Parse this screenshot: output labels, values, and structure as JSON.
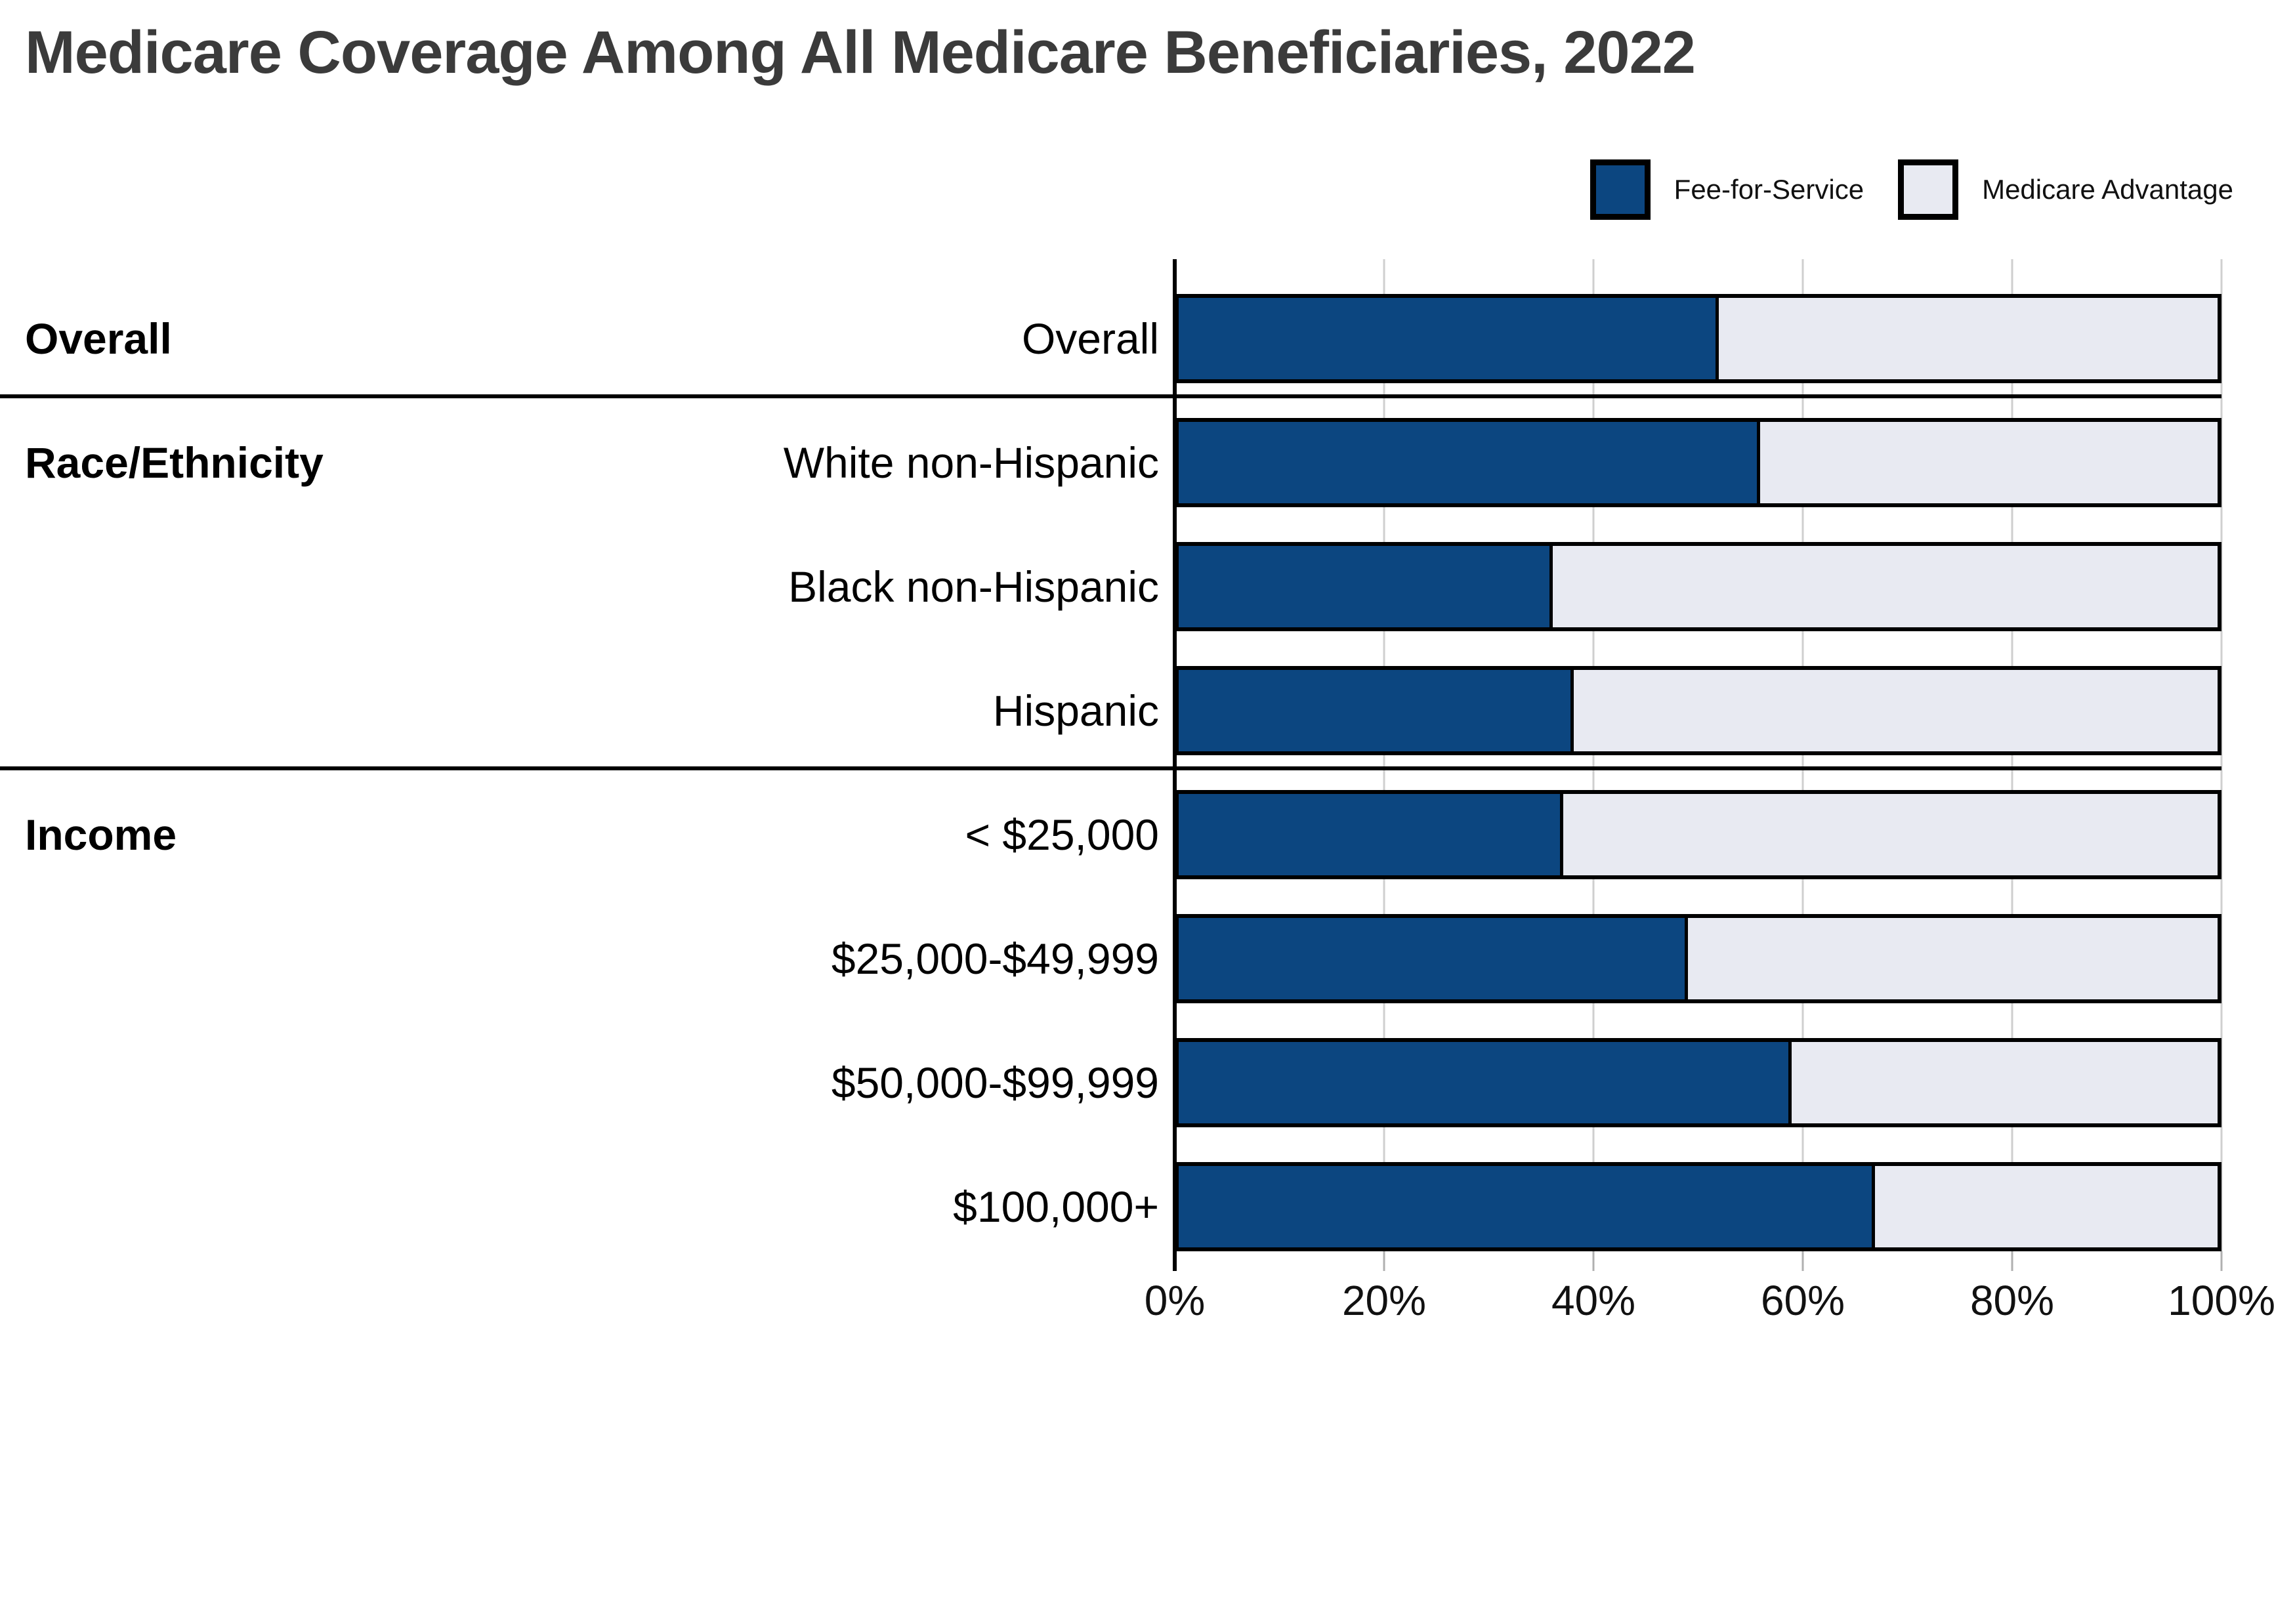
{
  "title": "Medicare Coverage Among All Medicare Beneficiaries, 2022",
  "legend": {
    "items": [
      {
        "label": "Fee-for-Service",
        "color": "#0C4680"
      },
      {
        "label": "Medicare Advantage",
        "color": "#E8EAF2"
      }
    ]
  },
  "colors": {
    "fee_for_service": "#0C4680",
    "medicare_advantage": "#E8EAF2",
    "segment_border": "#000000",
    "gridline": "#CFCFCF",
    "axis_line": "#000000",
    "title_text": "#3B3B3B"
  },
  "chart_data": {
    "type": "bar",
    "orientation": "horizontal",
    "stacked": true,
    "unit": "percent",
    "title": "Medicare Coverage Among All Medicare Beneficiaries, 2022",
    "xlabel": "",
    "ylabel": "",
    "xlim": [
      0,
      100
    ],
    "x_ticks": [
      "0%",
      "20%",
      "40%",
      "60%",
      "80%",
      "100%"
    ],
    "x_tick_values": [
      0,
      20,
      40,
      60,
      80,
      100
    ],
    "grid": true,
    "legend_position": "top-right",
    "series_names": [
      "Fee-for-Service",
      "Medicare Advantage"
    ],
    "groups": [
      {
        "group": "Overall",
        "rows": [
          {
            "label": "Overall",
            "fee_for_service": 52,
            "medicare_advantage": 48
          }
        ]
      },
      {
        "group": "Race/Ethnicity",
        "rows": [
          {
            "label": "White non-Hispanic",
            "fee_for_service": 56,
            "medicare_advantage": 44
          },
          {
            "label": "Black non-Hispanic",
            "fee_for_service": 36,
            "medicare_advantage": 64
          },
          {
            "label": "Hispanic",
            "fee_for_service": 38,
            "medicare_advantage": 62
          }
        ]
      },
      {
        "group": "Income",
        "rows": [
          {
            "label": "< $25,000",
            "fee_for_service": 37,
            "medicare_advantage": 63
          },
          {
            "label": "$25,000-$49,999",
            "fee_for_service": 49,
            "medicare_advantage": 51
          },
          {
            "label": "$50,000-$99,999",
            "fee_for_service": 59,
            "medicare_advantage": 41
          },
          {
            "label": "$100,000+",
            "fee_for_service": 67,
            "medicare_advantage": 33
          }
        ]
      }
    ]
  }
}
